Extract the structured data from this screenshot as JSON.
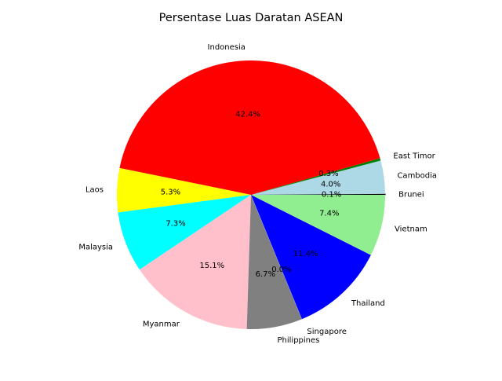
{
  "chart_data": {
    "type": "pie",
    "title": "Persentase Luas Daratan ASEAN",
    "start_angle_deg": 0,
    "direction": "counterclockwise",
    "slices": [
      {
        "label": "Brunei",
        "value": 0.1,
        "pct_label": "0.1%",
        "color": "#000000"
      },
      {
        "label": "Cambodia",
        "value": 4.0,
        "pct_label": "4.0%",
        "color": "#add8e6"
      },
      {
        "label": "East Timor",
        "value": 0.3,
        "pct_label": "0.3%",
        "color": "#008000"
      },
      {
        "label": "Indonesia",
        "value": 42.4,
        "pct_label": "42.4%",
        "color": "#ff0000"
      },
      {
        "label": "Laos",
        "value": 5.3,
        "pct_label": "5.3%",
        "color": "#ffff00"
      },
      {
        "label": "Malaysia",
        "value": 7.3,
        "pct_label": "7.3%",
        "color": "#00ffff"
      },
      {
        "label": "Myanmar",
        "value": 15.1,
        "pct_label": "15.1%",
        "color": "#ffc0cb"
      },
      {
        "label": "Philippines",
        "value": 6.7,
        "pct_label": "6.7%",
        "color": "#808080"
      },
      {
        "label": "Singapore",
        "value": 0.0,
        "pct_label": "0.0%",
        "color": "#ffffff"
      },
      {
        "label": "Thailand",
        "value": 11.4,
        "pct_label": "11.4%",
        "color": "#0000ff"
      },
      {
        "label": "Vietnam",
        "value": 7.4,
        "pct_label": "7.4%",
        "color": "#90ee90"
      }
    ]
  }
}
